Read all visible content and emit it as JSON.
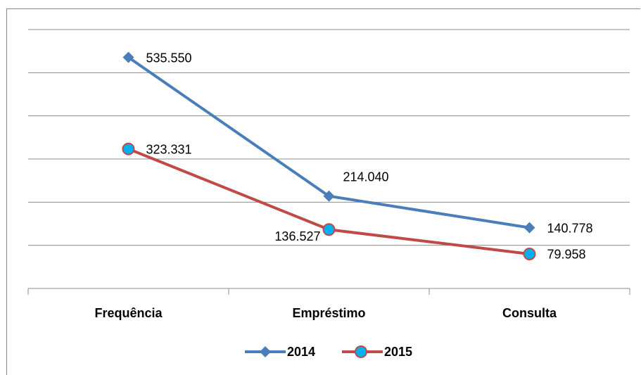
{
  "chart_data": {
    "type": "line",
    "categories": [
      "Frequência",
      "Empréstimo",
      "Consulta"
    ],
    "series": [
      {
        "name": "2014",
        "color": "#4a7ebb",
        "values": [
          535550,
          214040,
          140778
        ],
        "value_labels": [
          "535.550",
          "214.040",
          "140.778"
        ]
      },
      {
        "name": "2015",
        "color": "#be4b48",
        "values": [
          323331,
          136527,
          79958
        ],
        "value_labels": [
          "323.331",
          "136.527",
          "79.958"
        ]
      }
    ],
    "ylim": [
      0,
      600000
    ],
    "yticks": [
      0,
      100000,
      200000,
      300000,
      400000,
      500000,
      600000
    ],
    "grid": true,
    "legend": "bottom"
  }
}
